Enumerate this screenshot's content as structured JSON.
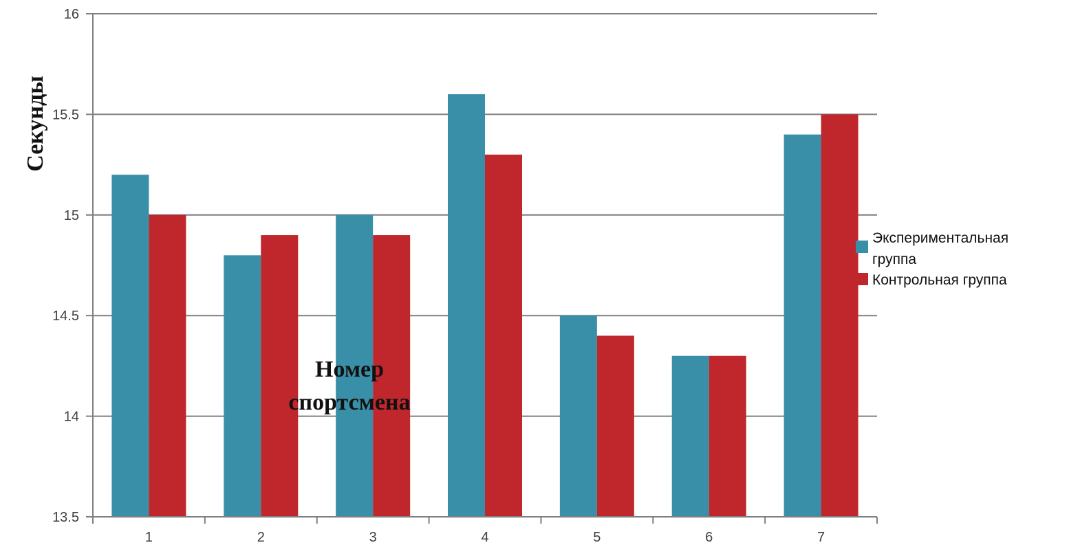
{
  "chart_data": {
    "type": "bar",
    "categories": [
      "1",
      "2",
      "3",
      "4",
      "5",
      "6",
      "7"
    ],
    "series": [
      {
        "name": "Экспериментальная группа",
        "values": [
          15.2,
          14.8,
          15.0,
          15.6,
          14.5,
          14.3,
          15.4
        ],
        "color": "#3a8fa8"
      },
      {
        "name": "Контрольная группа",
        "values": [
          15.0,
          14.9,
          14.9,
          15.3,
          14.4,
          14.3,
          15.5
        ],
        "color": "#c0272d"
      }
    ],
    "title": "",
    "xlabel": "Номер спортсмена",
    "ylabel": "Секунды",
    "ylim": [
      13.5,
      16
    ],
    "yticks": [
      "13.5",
      "14",
      "14.5",
      "15",
      "15.5",
      "16"
    ],
    "grid": true,
    "legend_position": "right",
    "legend": {
      "series_0_line_1": "Экспериментальная",
      "series_0_line_2": "группа",
      "series_1_line_1": "Контрольная группа"
    },
    "annotation": {
      "line_1": "Номер",
      "line_2": "спортсмена"
    }
  }
}
